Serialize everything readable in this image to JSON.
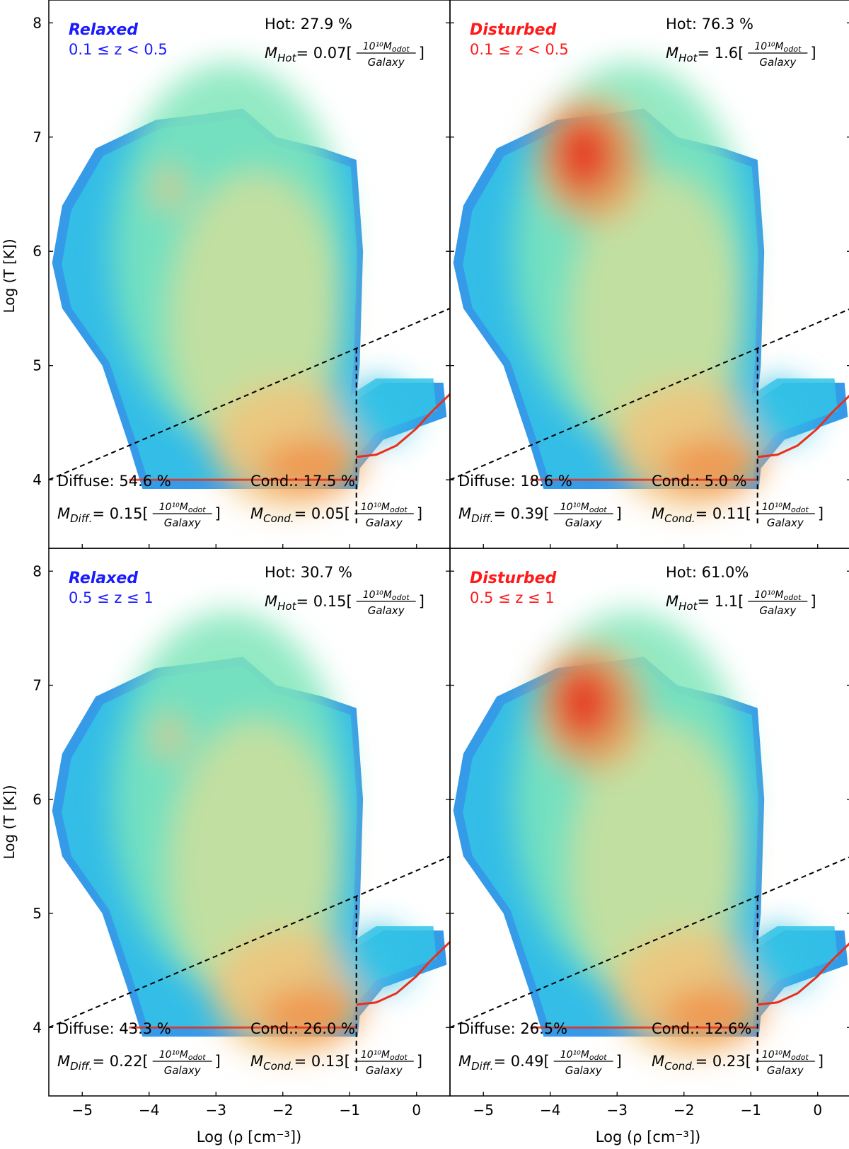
{
  "figure": {
    "xlabel": "Log (ρ  [cm⁻³])",
    "ylabel": "Log (T [K])",
    "colormap": [
      "#1f8fe6",
      "#32c3e6",
      "#7fe6b8",
      "#d6e09a",
      "#f2c37a",
      "#f59045",
      "#e8301c"
    ]
  },
  "chart_data": [
    {
      "type": "heatmap",
      "panel": "top-left",
      "state": "Relaxed",
      "state_color": "#1a1aff",
      "redshift_label": "0.1 ≤ z < 0.5",
      "hot": {
        "label": "Hot: 27.9 %",
        "mass_prefix": "M",
        "mass_sub": "Hot",
        "mass_value": "= 0.07"
      },
      "diffuse": {
        "label": "Diffuse: 54.6 %",
        "mass_prefix": "M",
        "mass_sub": "Diff.",
        "mass_value": "= 0.15"
      },
      "cond": {
        "label": "Cond.: 17.5 %",
        "mass_prefix": "M",
        "mass_sub": "Cond.",
        "mass_value": "= 0.05"
      },
      "mass_unit": {
        "numerator": "10¹⁰M",
        "numerator_sub": "odot",
        "denominator": "Galaxy"
      },
      "xlim": [
        -5.5,
        0.5
      ],
      "ylim": [
        3.4,
        8.2
      ],
      "xticks": [
        -5,
        -4,
        -3,
        -2,
        -1,
        0
      ],
      "yticks": [
        4,
        5,
        6,
        7,
        8
      ],
      "threshold_line": {
        "x": [
          -5.5,
          0.5
        ],
        "y": [
          4.0,
          5.5
        ]
      },
      "density_cut": -0.9
    },
    {
      "type": "heatmap",
      "panel": "top-right",
      "state": "Disturbed",
      "state_color": "#ff1a1a",
      "redshift_label": "0.1 ≤ z < 0.5",
      "hot": {
        "label": "Hot: 76.3 %",
        "mass_prefix": "M",
        "mass_sub": "Hot",
        "mass_value": "= 1.6"
      },
      "diffuse": {
        "label": "Diffuse: 18.6 %",
        "mass_prefix": "M",
        "mass_sub": "Diff.",
        "mass_value": "= 0.39"
      },
      "cond": {
        "label": "Cond.: 5.0 %",
        "mass_prefix": "M",
        "mass_sub": "Cond.",
        "mass_value": "= 0.11"
      },
      "mass_unit": {
        "numerator": "10¹⁰M",
        "numerator_sub": "odot",
        "denominator": "Galaxy"
      },
      "xlim": [
        -5.5,
        0.5
      ],
      "ylim": [
        3.4,
        8.2
      ],
      "xticks": [
        -5,
        -4,
        -3,
        -2,
        -1,
        0
      ],
      "yticks": [
        4,
        5,
        6,
        7,
        8
      ],
      "threshold_line": {
        "x": [
          -5.5,
          0.5
        ],
        "y": [
          4.0,
          5.5
        ]
      },
      "density_cut": -0.9
    },
    {
      "type": "heatmap",
      "panel": "bottom-left",
      "state": "Relaxed",
      "state_color": "#1a1aff",
      "redshift_label": "0.5 ≤ z ≤ 1",
      "hot": {
        "label": "Hot: 30.7 %",
        "mass_prefix": "M",
        "mass_sub": "Hot",
        "mass_value": "= 0.15"
      },
      "diffuse": {
        "label": "Diffuse: 43.3 %",
        "mass_prefix": "M",
        "mass_sub": "Diff.",
        "mass_value": "= 0.22"
      },
      "cond": {
        "label": "Cond.: 26.0 %",
        "mass_prefix": "M",
        "mass_sub": "Cond.",
        "mass_value": "= 0.13"
      },
      "mass_unit": {
        "numerator": "10¹⁰M",
        "numerator_sub": "odot",
        "denominator": "Galaxy"
      },
      "xlim": [
        -5.5,
        0.5
      ],
      "ylim": [
        3.4,
        8.2
      ],
      "xticks": [
        -5,
        -4,
        -3,
        -2,
        -1,
        0
      ],
      "yticks": [
        4,
        5,
        6,
        7,
        8
      ],
      "threshold_line": {
        "x": [
          -5.5,
          0.5
        ],
        "y": [
          4.0,
          5.5
        ]
      },
      "density_cut": -0.9
    },
    {
      "type": "heatmap",
      "panel": "bottom-right",
      "state": "Disturbed",
      "state_color": "#ff1a1a",
      "redshift_label": "0.5 ≤ z ≤ 1",
      "hot": {
        "label": "Hot: 61.0%",
        "mass_prefix": "M",
        "mass_sub": "Hot",
        "mass_value": "= 1.1"
      },
      "diffuse": {
        "label": "Diffuse: 26.5%",
        "mass_prefix": "M",
        "mass_sub": "Diff.",
        "mass_value": "= 0.49"
      },
      "cond": {
        "label": "Cond.: 12.6%",
        "mass_prefix": "M",
        "mass_sub": "Cond.",
        "mass_value": "= 0.23"
      },
      "mass_unit": {
        "numerator": "10¹⁰M",
        "numerator_sub": "odot",
        "denominator": "Galaxy"
      },
      "xlim": [
        -5.5,
        0.5
      ],
      "ylim": [
        3.4,
        8.2
      ],
      "xticks": [
        -5,
        -4,
        -3,
        -2,
        -1,
        0
      ],
      "yticks": [
        4,
        5,
        6,
        7,
        8
      ],
      "threshold_line": {
        "x": [
          -5.5,
          0.5
        ],
        "y": [
          4.0,
          5.5
        ]
      },
      "density_cut": -0.9
    }
  ]
}
